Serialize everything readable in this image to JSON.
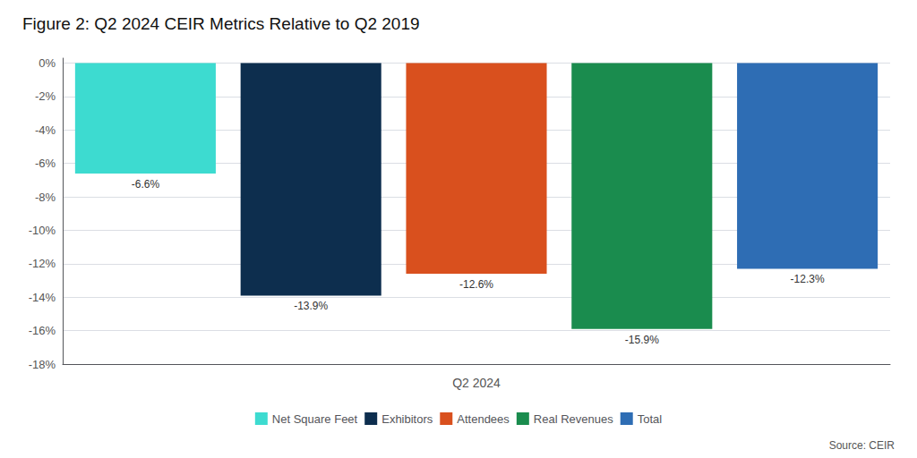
{
  "chart_data": {
    "type": "bar",
    "title": "Figure 2: Q2 2024 CEIR Metrics Relative to Q2 2019",
    "xlabel": "Q2 2024",
    "categories": [
      "Net Square Feet",
      "Exhibitors",
      "Attendees",
      "Real Revenues",
      "Total"
    ],
    "values": [
      -6.6,
      -13.9,
      -12.6,
      -15.9,
      -12.3
    ],
    "value_labels": [
      "-6.6%",
      "-13.9%",
      "-12.6%",
      "-15.9%",
      "-12.3%"
    ],
    "colors": [
      "#3DDBD0",
      "#0D2E4E",
      "#D9501E",
      "#1A8C4E",
      "#2E6DB4"
    ],
    "data_labels": true,
    "ylim": [
      -18,
      0.3
    ],
    "yticks": [
      {
        "value": 0,
        "label": "0%"
      },
      {
        "value": -2,
        "label": "-2%"
      },
      {
        "value": -4,
        "label": "-4%"
      },
      {
        "value": -6,
        "label": "-6%"
      },
      {
        "value": -8,
        "label": "-8%"
      },
      {
        "value": -10,
        "label": "-10%"
      },
      {
        "value": -12,
        "label": "-12%"
      },
      {
        "value": -14,
        "label": "-14%"
      },
      {
        "value": -16,
        "label": "-16%"
      },
      {
        "value": -18,
        "label": "-18%"
      }
    ],
    "grid": true,
    "legend": "bottom",
    "tick_labels": "y",
    "annotations": [
      "Source: CEIR"
    ]
  }
}
